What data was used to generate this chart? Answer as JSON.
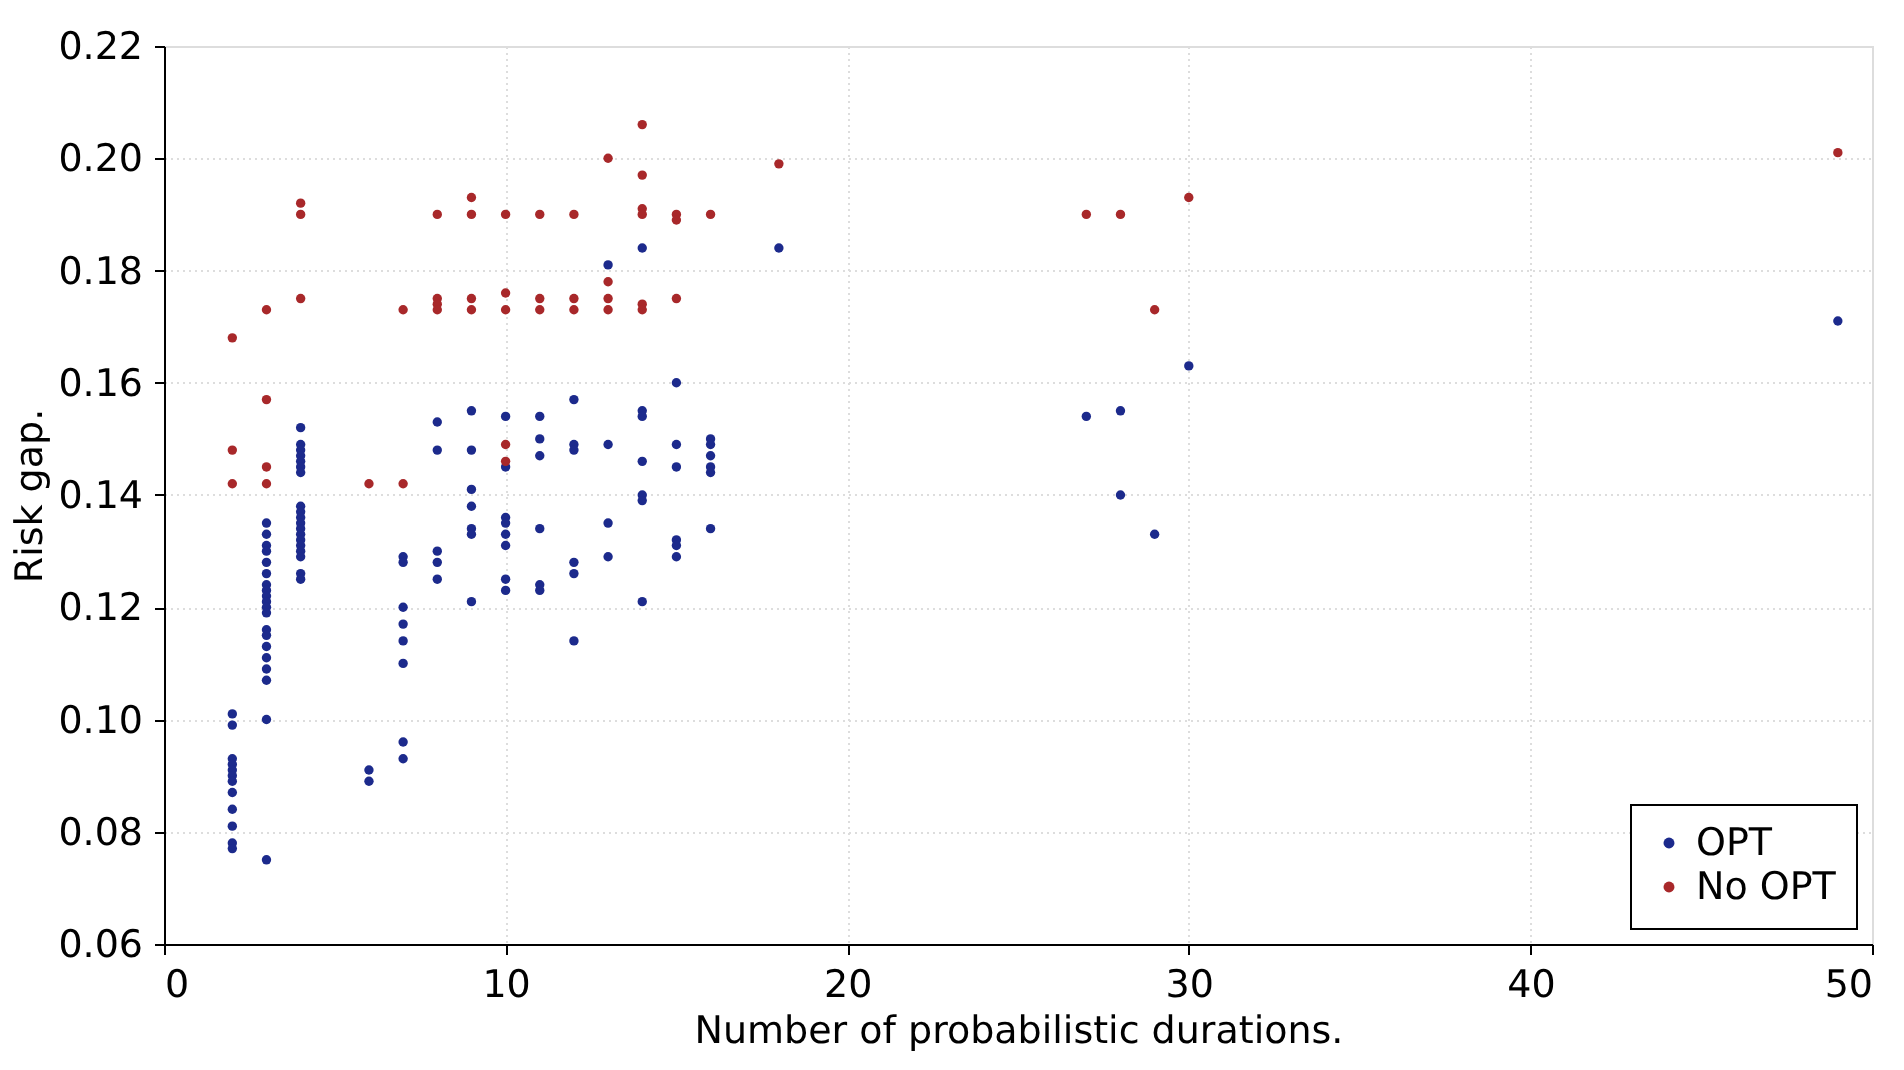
{
  "chart_data": {
    "type": "scatter",
    "xlabel": "Number of probabilistic durations.",
    "ylabel": "Risk gap.",
    "xlim": [
      0,
      50
    ],
    "xticks": [
      0,
      10,
      20,
      30,
      40,
      50
    ],
    "ylim": [
      0.06,
      0.22
    ],
    "yticks": [
      {
        "value": 0.06,
        "label": "0.06"
      },
      {
        "value": 0.08,
        "label": "0.08"
      },
      {
        "value": 0.1,
        "label": "0.10"
      },
      {
        "value": 0.12,
        "label": "0.12"
      },
      {
        "value": 0.14,
        "label": "0.14"
      },
      {
        "value": 0.16,
        "label": "0.16"
      },
      {
        "value": 0.18,
        "label": "0.18"
      },
      {
        "value": 0.2,
        "label": "0.20"
      },
      {
        "value": 0.22,
        "label": "0.22"
      }
    ],
    "grid": true,
    "legend": "bottom right",
    "marker": "circle",
    "series": [
      {
        "name": "OPT",
        "color": "#1c2a8c",
        "x": [
          2,
          2,
          2,
          2,
          2,
          2,
          2,
          2,
          2,
          2,
          2,
          2,
          3,
          3,
          3,
          3,
          3,
          3,
          3,
          3,
          3,
          3,
          3,
          3,
          3,
          3,
          3,
          3,
          3,
          3,
          3,
          3,
          4,
          4,
          4,
          4,
          4,
          4,
          4,
          4,
          4,
          4,
          4,
          4,
          4,
          4,
          4,
          4,
          4,
          4,
          4,
          6,
          6,
          7,
          7,
          7,
          7,
          7,
          7,
          7,
          7,
          8,
          8,
          8,
          8,
          8,
          9,
          9,
          9,
          9,
          9,
          9,
          9,
          10,
          10,
          10,
          10,
          10,
          10,
          10,
          10,
          11,
          11,
          11,
          11,
          11,
          11,
          12,
          12,
          12,
          12,
          12,
          12,
          13,
          13,
          13,
          13,
          14,
          14,
          14,
          14,
          14,
          14,
          14,
          15,
          15,
          15,
          15,
          15,
          15,
          16,
          16,
          16,
          16,
          16,
          16,
          18,
          27,
          28,
          28,
          29,
          30,
          49
        ],
        "values": [
          0.101,
          0.099,
          0.093,
          0.092,
          0.091,
          0.09,
          0.089,
          0.087,
          0.084,
          0.081,
          0.078,
          0.077,
          0.135,
          0.133,
          0.131,
          0.13,
          0.128,
          0.126,
          0.124,
          0.123,
          0.122,
          0.121,
          0.12,
          0.119,
          0.116,
          0.115,
          0.113,
          0.111,
          0.109,
          0.107,
          0.1,
          0.075,
          0.152,
          0.149,
          0.148,
          0.147,
          0.146,
          0.145,
          0.144,
          0.138,
          0.137,
          0.136,
          0.135,
          0.134,
          0.133,
          0.132,
          0.131,
          0.13,
          0.129,
          0.126,
          0.125,
          0.091,
          0.089,
          0.129,
          0.128,
          0.12,
          0.117,
          0.114,
          0.11,
          0.096,
          0.093,
          0.153,
          0.148,
          0.13,
          0.128,
          0.125,
          0.155,
          0.148,
          0.141,
          0.138,
          0.134,
          0.133,
          0.121,
          0.154,
          0.145,
          0.136,
          0.135,
          0.133,
          0.131,
          0.125,
          0.123,
          0.154,
          0.15,
          0.147,
          0.134,
          0.124,
          0.123,
          0.157,
          0.149,
          0.148,
          0.128,
          0.126,
          0.114,
          0.181,
          0.149,
          0.135,
          0.129,
          0.184,
          0.155,
          0.154,
          0.146,
          0.14,
          0.139,
          0.121,
          0.16,
          0.149,
          0.145,
          0.132,
          0.131,
          0.129,
          0.15,
          0.149,
          0.147,
          0.145,
          0.144,
          0.134,
          0.184,
          0.154,
          0.155,
          0.14,
          0.133,
          0.163,
          0.171
        ]
      },
      {
        "name": "No OPT",
        "color": "#a8282a",
        "x": [
          2,
          2,
          2,
          3,
          3,
          3,
          3,
          4,
          4,
          4,
          6,
          7,
          7,
          8,
          8,
          8,
          8,
          9,
          9,
          9,
          9,
          10,
          10,
          10,
          10,
          10,
          11,
          11,
          11,
          12,
          12,
          12,
          13,
          13,
          13,
          13,
          14,
          14,
          14,
          14,
          14,
          14,
          15,
          15,
          15,
          16,
          18,
          27,
          28,
          29,
          30,
          49
        ],
        "values": [
          0.168,
          0.148,
          0.142,
          0.173,
          0.157,
          0.145,
          0.142,
          0.192,
          0.19,
          0.175,
          0.142,
          0.173,
          0.142,
          0.19,
          0.175,
          0.174,
          0.173,
          0.193,
          0.19,
          0.175,
          0.173,
          0.19,
          0.176,
          0.173,
          0.149,
          0.146,
          0.19,
          0.175,
          0.173,
          0.19,
          0.175,
          0.173,
          0.2,
          0.178,
          0.175,
          0.173,
          0.206,
          0.197,
          0.191,
          0.19,
          0.174,
          0.173,
          0.19,
          0.189,
          0.175,
          0.19,
          0.199,
          0.19,
          0.19,
          0.173,
          0.193,
          0.201
        ]
      }
    ]
  }
}
